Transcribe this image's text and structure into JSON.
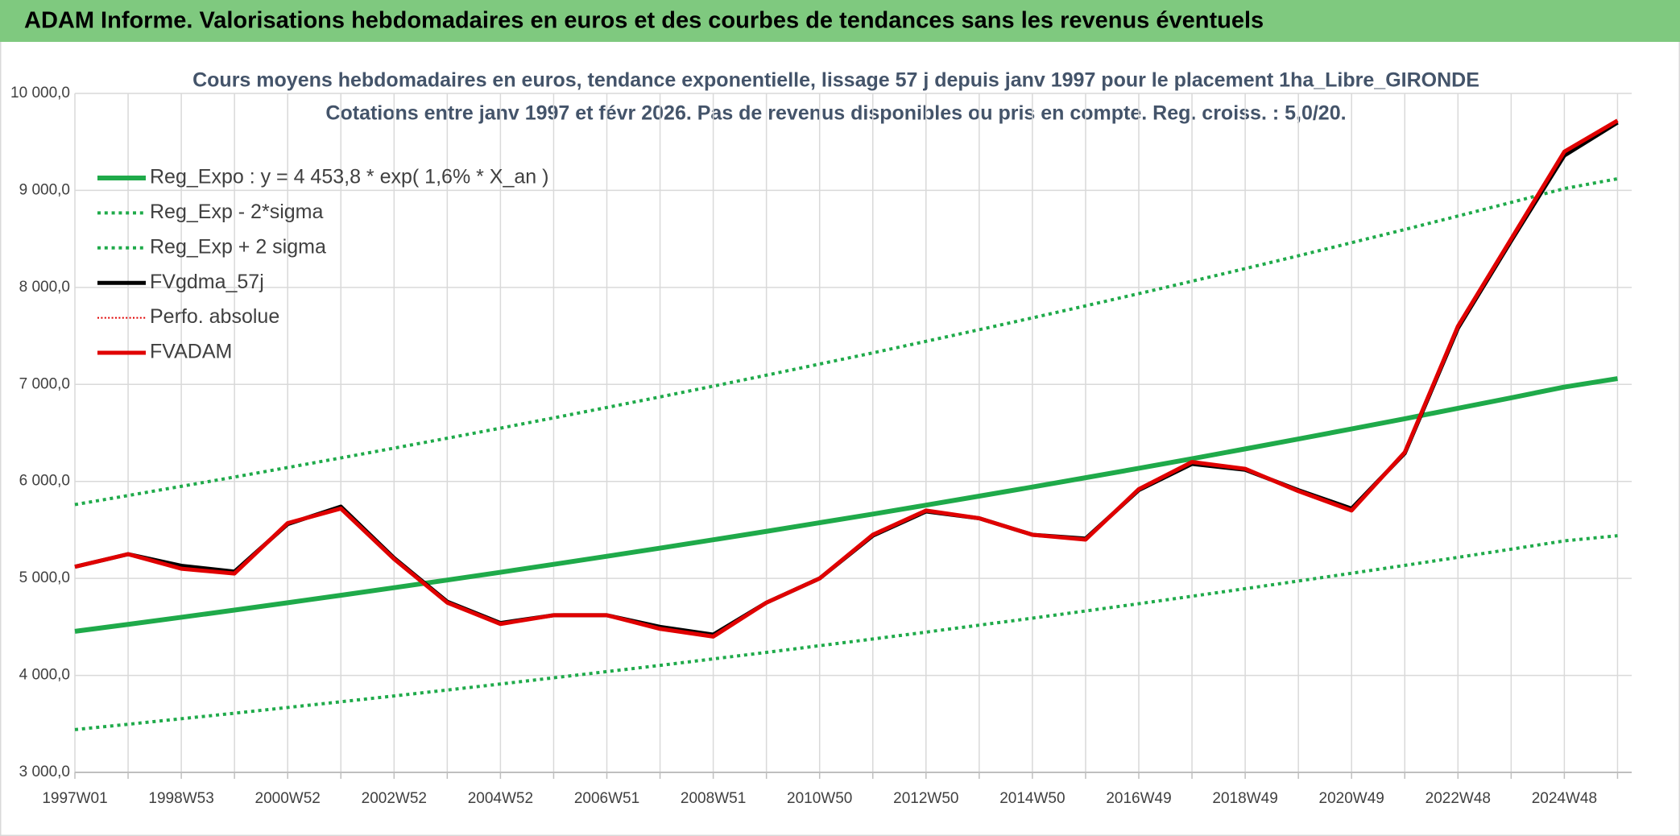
{
  "header": {
    "title": "ADAM Informe. Valorisations hebdomadaires en euros et des courbes de tendances sans les revenus éventuels"
  },
  "chart_data": {
    "type": "line",
    "title": "Cours moyens hebdomadaires en euros, tendance exponentielle, lissage 57 j depuis janv 1997 pour le placement 1ha_Libre_GIRONDE",
    "subtitle": "Cotations entre janv 1997 et févr 2026. Pas de revenus disponibles ou pris en compte. Reg. croiss. : 5,0/20.",
    "categories": [
      "1997W01",
      null,
      "1998W53",
      null,
      "2000W52",
      null,
      "2002W52",
      null,
      "2004W52",
      null,
      "2006W51",
      null,
      "2008W51",
      null,
      "2010W50",
      null,
      "2012W50",
      null,
      "2014W50",
      null,
      "2016W49",
      null,
      "2018W49",
      null,
      "2020W49",
      null,
      "2022W48",
      null,
      "2024W48",
      null
    ],
    "ylim": [
      3000,
      10000
    ],
    "yticks": [
      {
        "value": 3000,
        "label": "3 000,0"
      },
      {
        "value": 4000,
        "label": "4 000,0"
      },
      {
        "value": 5000,
        "label": "5 000,0"
      },
      {
        "value": 6000,
        "label": "6 000,0"
      },
      {
        "value": 7000,
        "label": "7 000,0"
      },
      {
        "value": 8000,
        "label": "8 000,0"
      },
      {
        "value": 9000,
        "label": "9 000,0"
      },
      {
        "value": 10000,
        "label": "10 000,0"
      }
    ],
    "grid": true,
    "legend": "top-left",
    "series": [
      {
        "name": "Reg_Expo : y = 4 453,8 * exp( 1,6% *  X_an )",
        "color": "#1faa4a",
        "dash": "solid",
        "width": 6,
        "values": [
          4454,
          4526,
          4599,
          4673,
          4749,
          4826,
          4904,
          4983,
          5063,
          5145,
          5228,
          5312,
          5398,
          5485,
          5574,
          5663,
          5755,
          5848,
          5942,
          6038,
          6135,
          6234,
          6335,
          6437,
          6541,
          6646,
          6754,
          6862,
          6973,
          7060
        ]
      },
      {
        "name": "Reg_Exp - 2*sigma",
        "color": "#1faa4a",
        "dash": "dot",
        "width": 4,
        "values": [
          3441,
          3496,
          3553,
          3610,
          3669,
          3728,
          3788,
          3849,
          3911,
          3975,
          4039,
          4103,
          4170,
          4237,
          4306,
          4375,
          4446,
          4518,
          4590,
          4664,
          4739,
          4816,
          4894,
          4973,
          5053,
          5134,
          5217,
          5301,
          5387,
          5440
        ]
      },
      {
        "name": "Reg_Exp + 2 sigma",
        "color": "#1faa4a",
        "dash": "dot",
        "width": 4,
        "values": [
          5761,
          5854,
          5949,
          6045,
          6143,
          6242,
          6343,
          6445,
          6549,
          6655,
          6762,
          6871,
          6982,
          7095,
          7210,
          7325,
          7444,
          7564,
          7686,
          7810,
          7936,
          8064,
          8194,
          8326,
          8461,
          8597,
          8736,
          8876,
          9019,
          9120
        ]
      },
      {
        "name": "FVgdma_57j",
        "color": "#000000",
        "dash": "solid",
        "width": 5,
        "values": [
          5120,
          5250,
          5130,
          5070,
          5560,
          5740,
          5210,
          4760,
          4540,
          4620,
          4620,
          4500,
          4420,
          4750,
          5000,
          5440,
          5690,
          5620,
          5450,
          5410,
          5910,
          6180,
          6120,
          5910,
          5720,
          6290,
          7580,
          8480,
          9360,
          9700
        ]
      },
      {
        "name": "Perfo. absolue",
        "color": "#e00000",
        "dash": "dot",
        "width": 2,
        "values": [
          5120,
          5250,
          5100,
          5050,
          5570,
          5720,
          5200,
          4750,
          4530,
          4620,
          4620,
          4480,
          4400,
          4750,
          5000,
          5450,
          5700,
          5620,
          5450,
          5400,
          5920,
          6200,
          6130,
          5900,
          5700,
          6300,
          7600,
          8500,
          9400,
          9720
        ]
      },
      {
        "name": "FVADAM",
        "color": "#e00000",
        "dash": "solid",
        "width": 5,
        "values": [
          5120,
          5250,
          5100,
          5050,
          5570,
          5720,
          5200,
          4750,
          4530,
          4620,
          4620,
          4480,
          4400,
          4750,
          5000,
          5450,
          5700,
          5620,
          5450,
          5400,
          5920,
          6200,
          6130,
          5900,
          5700,
          6300,
          7600,
          8500,
          9400,
          9720
        ]
      }
    ]
  }
}
